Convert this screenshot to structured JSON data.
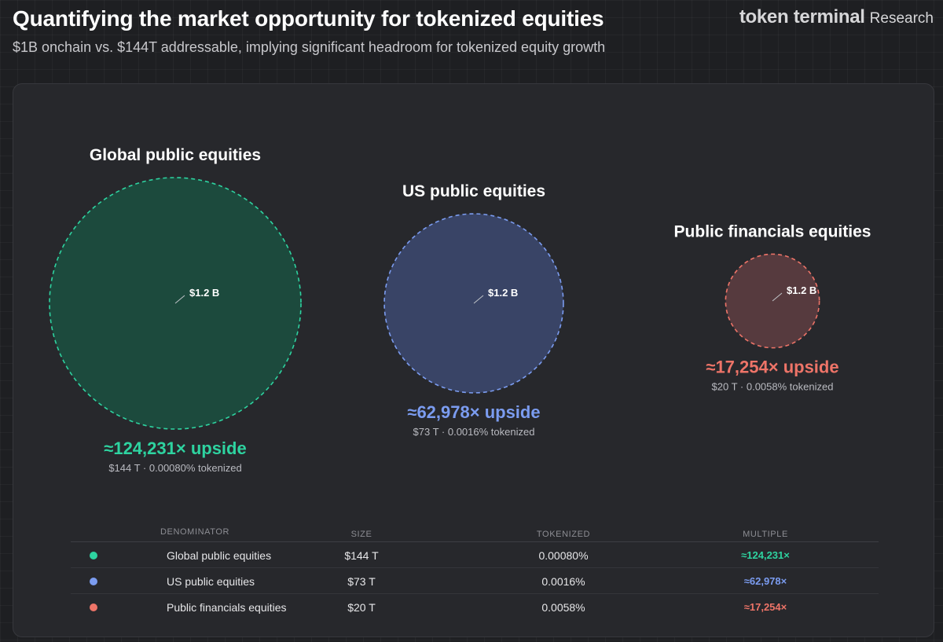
{
  "header": {
    "title": "Quantifying the market opportunity for tokenized equities",
    "subtitle": "$1B onchain vs. $144T addressable, implying significant headroom for tokenized equity growth",
    "brand": "token terminal",
    "brand_suffix": "Research"
  },
  "colors": {
    "global": "#2ed3a0",
    "us": "#7b9cf0",
    "financials": "#ee7468"
  },
  "chart_data": {
    "type": "bubble",
    "title": "Quantifying the market opportunity for tokenized equities",
    "onchain_label": "$1.2 B",
    "series": [
      {
        "name": "Global public equities",
        "size_trillions": 144,
        "size_label": "$144 T",
        "tokenized_pct": "0.00080%",
        "multiple": "≈124,231×",
        "upside_label": "≈124,231× upside",
        "sub_label": "$144 T · 0.00080% tokenized"
      },
      {
        "name": "US public equities",
        "size_trillions": 73,
        "size_label": "$73 T",
        "tokenized_pct": "0.0016%",
        "multiple": "≈62,978×",
        "upside_label": "≈62,978× upside",
        "sub_label": "$73 T · 0.0016% tokenized"
      },
      {
        "name": "Public financials equities",
        "size_trillions": 20,
        "size_label": "$20 T",
        "tokenized_pct": "0.0058%",
        "multiple": "≈17,254×",
        "upside_label": "≈17,254× upside",
        "sub_label": "$20 T · 0.0058% tokenized"
      }
    ]
  },
  "table": {
    "headers": {
      "denominator": "DENOMINATOR",
      "size": "SIZE",
      "tokenized": "TOKENIZED",
      "multiple": "MULTIPLE"
    }
  }
}
